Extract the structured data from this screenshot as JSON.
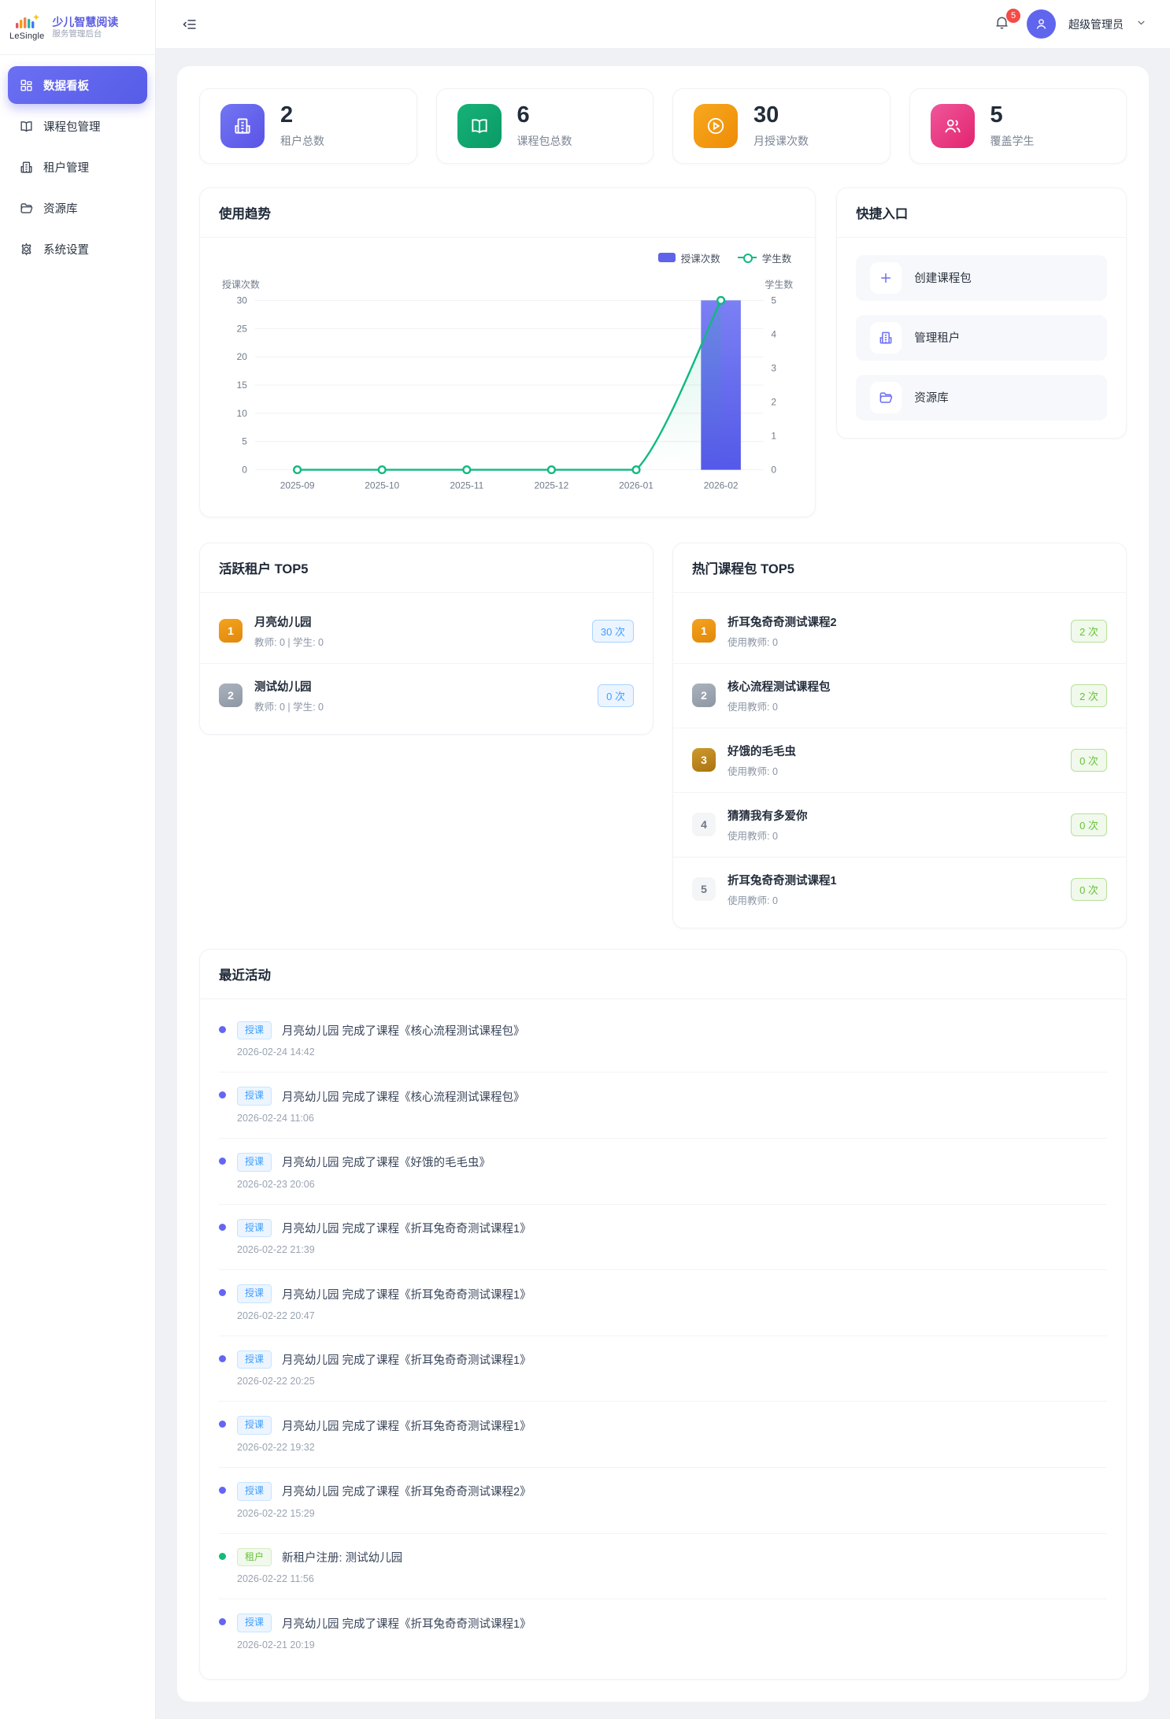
{
  "app": {
    "logo_text": "LeSingle",
    "brand_line1": "少儿智慧阅读",
    "brand_line2": "服务管理后台"
  },
  "sidebar": {
    "items": [
      {
        "label": "数据看板"
      },
      {
        "label": "课程包管理"
      },
      {
        "label": "租户管理"
      },
      {
        "label": "资源库"
      },
      {
        "label": "系统设置"
      }
    ]
  },
  "topbar": {
    "notification_count": "5",
    "user_name": "超级管理员"
  },
  "stats": {
    "cards": [
      {
        "value": "2",
        "label": "租户总数"
      },
      {
        "value": "6",
        "label": "课程包总数"
      },
      {
        "value": "30",
        "label": "月授课次数"
      },
      {
        "value": "5",
        "label": "覆盖学生"
      }
    ]
  },
  "trend": {
    "title": "使用趋势"
  },
  "chart_data": {
    "type": "bar+line combo, dual axis",
    "categories": [
      "2025-09",
      "2025-10",
      "2025-11",
      "2025-12",
      "2026-01",
      "2026-02"
    ],
    "series": [
      {
        "name": "授课次数",
        "type": "bar",
        "axis": "left",
        "values": [
          0,
          0,
          0,
          0,
          0,
          30
        ]
      },
      {
        "name": "学生数",
        "type": "line",
        "axis": "right",
        "values": [
          0,
          0,
          0,
          0,
          0,
          5
        ]
      }
    ],
    "left_axis": {
      "name": "授课次数",
      "min": 0,
      "max": 30,
      "step": 5
    },
    "right_axis": {
      "name": "学生数",
      "min": 0,
      "max": 5,
      "step": 1
    },
    "grid": true,
    "legend_position": "top-right"
  },
  "quick": {
    "title": "快捷入口",
    "items": [
      {
        "label": "创建课程包"
      },
      {
        "label": "管理租户"
      },
      {
        "label": "资源库"
      }
    ]
  },
  "active_tenants": {
    "title": "活跃租户 TOP5",
    "items": [
      {
        "rank": "1",
        "name": "月亮幼儿园",
        "meta": "教师: 0 | 学生: 0",
        "count": "30 次"
      },
      {
        "rank": "2",
        "name": "测试幼儿园",
        "meta": "教师: 0 | 学生: 0",
        "count": "0 次"
      }
    ]
  },
  "hot_courses": {
    "title": "热门课程包 TOP5",
    "items": [
      {
        "rank": "1",
        "name": "折耳兔奇奇测试课程2",
        "meta": "使用教师: 0",
        "count": "2 次"
      },
      {
        "rank": "2",
        "name": "核心流程测试课程包",
        "meta": "使用教师: 0",
        "count": "2 次"
      },
      {
        "rank": "3",
        "name": "好饿的毛毛虫",
        "meta": "使用教师: 0",
        "count": "0 次"
      },
      {
        "rank": "4",
        "name": "猜猜我有多爱你",
        "meta": "使用教师: 0",
        "count": "0 次"
      },
      {
        "rank": "5",
        "name": "折耳兔奇奇测试课程1",
        "meta": "使用教师: 0",
        "count": "0 次"
      }
    ]
  },
  "activity": {
    "title": "最近活动",
    "items": [
      {
        "badge": "授课",
        "text": "月亮幼儿园 完成了课程《核心流程测试课程包》",
        "time": "2026-02-24 14:42"
      },
      {
        "badge": "授课",
        "text": "月亮幼儿园 完成了课程《核心流程测试课程包》",
        "time": "2026-02-24 11:06"
      },
      {
        "badge": "授课",
        "text": "月亮幼儿园 完成了课程《好饿的毛毛虫》",
        "time": "2026-02-23 20:06"
      },
      {
        "badge": "授课",
        "text": "月亮幼儿园 完成了课程《折耳兔奇奇测试课程1》",
        "time": "2026-02-22 21:39"
      },
      {
        "badge": "授课",
        "text": "月亮幼儿园 完成了课程《折耳兔奇奇测试课程1》",
        "time": "2026-02-22 20:47"
      },
      {
        "badge": "授课",
        "text": "月亮幼儿园 完成了课程《折耳兔奇奇测试课程1》",
        "time": "2026-02-22 20:25"
      },
      {
        "badge": "授课",
        "text": "月亮幼儿园 完成了课程《折耳兔奇奇测试课程1》",
        "time": "2026-02-22 19:32"
      },
      {
        "badge": "授课",
        "text": "月亮幼儿园 完成了课程《折耳兔奇奇测试课程2》",
        "time": "2026-02-22 15:29"
      },
      {
        "badge": "租户",
        "text": "新租户注册: 测试幼儿园",
        "time": "2026-02-22 11:56"
      },
      {
        "badge": "授课",
        "text": "月亮幼儿园 完成了课程《折耳兔奇奇测试课程1》",
        "time": "2026-02-21 20:19"
      }
    ]
  },
  "colors": {
    "primary": "#6366f1",
    "bar_top": "#7b80f4",
    "bar_bottom": "#5459e8",
    "line_green": "#10b981",
    "stat_green": "#10a56b",
    "stat_orange": "#f09a0e",
    "stat_pink": "#e8307d",
    "badge_blue": "#409eff",
    "badge_green": "#67c23a",
    "notification_red": "#f54a45"
  }
}
